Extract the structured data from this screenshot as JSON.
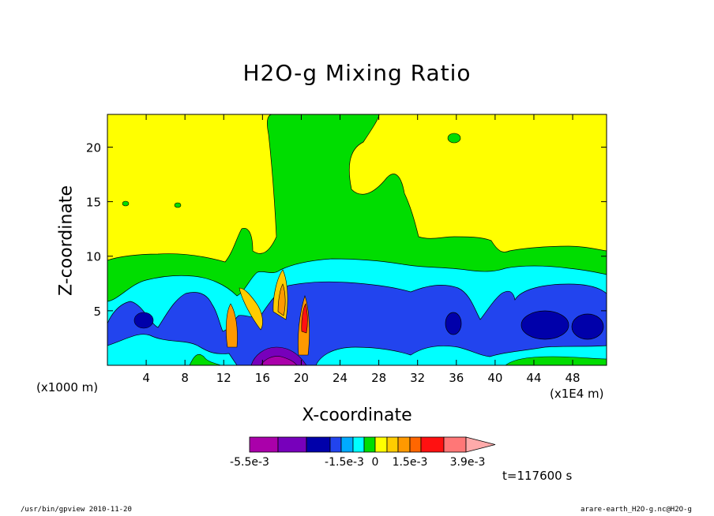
{
  "chart_data": {
    "type": "heatmap",
    "title": "H2O-g Mixing Ratio",
    "xlabel": "X-coordinate",
    "ylabel": "Z-coordinate",
    "x_scale_note": "(x1000 m)",
    "x_unit_note": "(x1E4 m)",
    "xlim": [
      0,
      51.5
    ],
    "ylim": [
      0,
      23
    ],
    "x_ticks": [
      "4",
      "8",
      "12",
      "16",
      "20",
      "24",
      "28",
      "32",
      "36",
      "40",
      "44",
      "48"
    ],
    "y_ticks": [
      "5",
      "10",
      "15",
      "20"
    ],
    "colorbar": {
      "labels": [
        "-5.5e-3",
        "-1.5e-3",
        "0",
        "1.5e-3",
        "3.9e-3"
      ],
      "colors": [
        "#aa00aa",
        "#7700bb",
        "#0000aa",
        "#2244ee",
        "#00aaff",
        "#00ffff",
        "#00dd00",
        "#ffff00",
        "#ffcc00",
        "#ff9900",
        "#ff6600",
        "#ff1111",
        "#ff7777",
        "#ffaaaa"
      ]
    },
    "time_label": "t=117600 s"
  },
  "footer": {
    "left": "/usr/bin/gpview  2010-11-20",
    "right": "arare-earth_H2O-g.nc@H2O-g"
  }
}
